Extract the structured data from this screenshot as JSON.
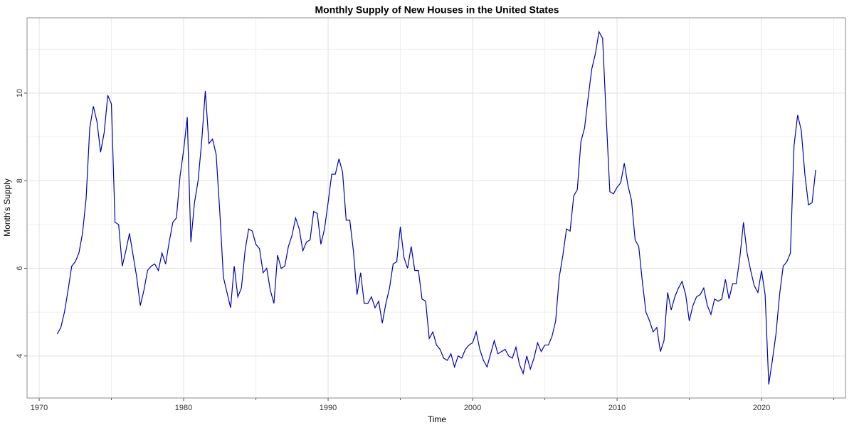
{
  "chart_data": {
    "type": "line",
    "title": "Monthly Supply of New Houses in the United States",
    "x_label": "Time",
    "y_label": "Month's Supply",
    "xlim": [
      1969.16,
      2025.81
    ],
    "ylim": [
      3.04,
      11.72
    ],
    "xticks": [
      1970,
      1980,
      1990,
      2000,
      2010,
      2020
    ],
    "yticks": [
      4,
      6,
      8,
      10
    ],
    "x_minor_ticks": [
      1975,
      1985,
      1995,
      2005,
      2015,
      2025
    ],
    "y_minor_ticks": [
      5,
      7,
      9,
      11
    ],
    "grid": true,
    "series": [
      {
        "name": "Month's Supply",
        "color": "#0000b8",
        "x": [
          1971.25,
          1971.5,
          1971.75,
          1972,
          1972.25,
          1972.5,
          1972.75,
          1973,
          1973.25,
          1973.5,
          1973.75,
          1974,
          1974.25,
          1974.5,
          1974.75,
          1975,
          1975.25,
          1975.5,
          1975.75,
          1976,
          1976.25,
          1976.5,
          1976.75,
          1977,
          1977.25,
          1977.5,
          1977.75,
          1978,
          1978.25,
          1978.5,
          1978.75,
          1979,
          1979.25,
          1979.5,
          1979.75,
          1980,
          1980.25,
          1980.5,
          1980.75,
          1981,
          1981.25,
          1981.5,
          1981.75,
          1982,
          1982.25,
          1982.5,
          1982.75,
          1983,
          1983.25,
          1983.5,
          1983.75,
          1984,
          1984.25,
          1984.5,
          1984.75,
          1985,
          1985.25,
          1985.5,
          1985.75,
          1986,
          1986.25,
          1986.5,
          1986.75,
          1987,
          1987.25,
          1987.5,
          1987.75,
          1988,
          1988.25,
          1988.5,
          1988.75,
          1989,
          1989.25,
          1989.5,
          1989.75,
          1990,
          1990.25,
          1990.5,
          1990.75,
          1991,
          1991.25,
          1991.5,
          1991.75,
          1992,
          1992.25,
          1992.5,
          1992.75,
          1993,
          1993.25,
          1993.5,
          1993.75,
          1994,
          1994.25,
          1994.5,
          1994.75,
          1995,
          1995.25,
          1995.5,
          1995.75,
          1996,
          1996.25,
          1996.5,
          1996.75,
          1997,
          1997.25,
          1997.5,
          1997.75,
          1998,
          1998.25,
          1998.5,
          1998.75,
          1999,
          1999.25,
          1999.5,
          1999.75,
          2000,
          2000.25,
          2000.5,
          2000.75,
          2001,
          2001.25,
          2001.5,
          2001.75,
          2002,
          2002.25,
          2002.5,
          2002.75,
          2003,
          2003.25,
          2003.5,
          2003.75,
          2004,
          2004.25,
          2004.5,
          2004.75,
          2005,
          2005.25,
          2005.5,
          2005.75,
          2006,
          2006.25,
          2006.5,
          2006.75,
          2007,
          2007.25,
          2007.5,
          2007.75,
          2008,
          2008.25,
          2008.5,
          2008.75,
          2009,
          2009.25,
          2009.5,
          2009.75,
          2010,
          2010.25,
          2010.5,
          2010.75,
          2011,
          2011.25,
          2011.5,
          2011.75,
          2012,
          2012.25,
          2012.5,
          2012.75,
          2013,
          2013.25,
          2013.5,
          2013.75,
          2014,
          2014.25,
          2014.5,
          2014.75,
          2015,
          2015.25,
          2015.5,
          2015.75,
          2016,
          2016.25,
          2016.5,
          2016.75,
          2017,
          2017.25,
          2017.5,
          2017.75,
          2018,
          2018.25,
          2018.5,
          2018.75,
          2019,
          2019.25,
          2019.5,
          2019.75,
          2020,
          2020.25,
          2020.5,
          2020.75,
          2021,
          2021.25,
          2021.5,
          2021.75,
          2022,
          2022.25,
          2022.5,
          2022.75,
          2023,
          2023.25,
          2023.5,
          2023.75
        ],
        "values": [
          4.5,
          4.65,
          5.0,
          5.5,
          6.05,
          6.15,
          6.35,
          6.8,
          7.6,
          9.2,
          9.7,
          9.35,
          8.65,
          9.1,
          9.95,
          9.75,
          7.05,
          7.0,
          6.05,
          6.4,
          6.8,
          6.3,
          5.8,
          5.15,
          5.5,
          5.95,
          6.05,
          6.1,
          5.95,
          6.35,
          6.1,
          6.6,
          7.05,
          7.15,
          8.1,
          8.7,
          9.45,
          6.6,
          7.5,
          8.0,
          8.9,
          10.05,
          8.85,
          8.95,
          8.6,
          7.3,
          5.8,
          5.45,
          5.1,
          6.05,
          5.35,
          5.55,
          6.4,
          6.9,
          6.85,
          6.55,
          6.45,
          5.9,
          6.0,
          5.5,
          5.2,
          6.3,
          6.0,
          6.05,
          6.5,
          6.75,
          7.15,
          6.9,
          6.4,
          6.6,
          6.65,
          7.3,
          7.25,
          6.55,
          6.9,
          7.5,
          8.15,
          8.15,
          8.5,
          8.2,
          7.1,
          7.1,
          6.4,
          5.4,
          5.9,
          5.2,
          5.2,
          5.35,
          5.1,
          5.25,
          4.75,
          5.2,
          5.55,
          6.1,
          6.15,
          6.95,
          6.25,
          6.0,
          6.5,
          5.95,
          5.95,
          5.3,
          5.25,
          4.4,
          4.55,
          4.25,
          4.15,
          3.95,
          3.9,
          4.05,
          3.75,
          4.0,
          3.95,
          4.15,
          4.25,
          4.3,
          4.55,
          4.15,
          3.9,
          3.75,
          4.05,
          4.35,
          4.05,
          4.1,
          4.15,
          4.0,
          3.95,
          4.2,
          3.8,
          3.6,
          4.0,
          3.7,
          3.95,
          4.3,
          4.1,
          4.25,
          4.25,
          4.45,
          4.8,
          5.8,
          6.3,
          6.9,
          6.85,
          7.65,
          7.8,
          8.9,
          9.2,
          9.9,
          10.55,
          10.9,
          11.4,
          11.25,
          9.45,
          7.75,
          7.7,
          7.85,
          7.95,
          8.4,
          7.9,
          7.55,
          6.65,
          6.5,
          5.7,
          5.0,
          4.8,
          4.55,
          4.65,
          4.1,
          4.35,
          5.45,
          5.05,
          5.35,
          5.55,
          5.7,
          5.4,
          4.8,
          5.15,
          5.35,
          5.4,
          5.55,
          5.15,
          4.95,
          5.3,
          5.25,
          5.3,
          5.75,
          5.3,
          5.65,
          5.65,
          6.25,
          7.05,
          6.35,
          5.95,
          5.6,
          5.45,
          5.95,
          5.4,
          3.35,
          3.9,
          4.5,
          5.4,
          6.05,
          6.15,
          6.35,
          8.8,
          9.5,
          9.15,
          8.15,
          7.45,
          7.5,
          8.25
        ]
      }
    ]
  }
}
